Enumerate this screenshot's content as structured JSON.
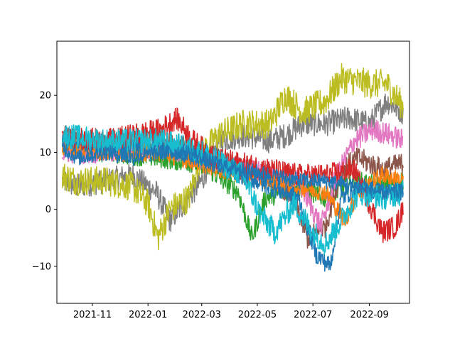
{
  "chart_data": {
    "type": "line",
    "title": "",
    "xlabel": "",
    "ylabel": "",
    "grid": false,
    "legend": "none",
    "xlim": [
      "2021-09-23",
      "2022-10-15"
    ],
    "ylim": [
      -16.5,
      29.5
    ],
    "x_ticks": [
      {
        "date": "2021-11-01",
        "label": "2021-11"
      },
      {
        "date": "2022-01-01",
        "label": "2022-01"
      },
      {
        "date": "2022-03-01",
        "label": "2022-03"
      },
      {
        "date": "2022-05-01",
        "label": "2022-05"
      },
      {
        "date": "2022-07-01",
        "label": "2022-07"
      },
      {
        "date": "2022-09-01",
        "label": "2022-09"
      }
    ],
    "y_ticks": [
      {
        "value": 20,
        "label": "20"
      },
      {
        "value": 10,
        "label": "10"
      },
      {
        "value": 0,
        "label": "0"
      },
      {
        "value": -10,
        "label": "−10"
      }
    ],
    "series": [
      {
        "color": "#7f7f7f",
        "noise": 2.2,
        "points": [
          [
            "2021-09-29",
            5
          ],
          [
            "2021-10-15",
            4
          ],
          [
            "2021-11-15",
            5
          ],
          [
            "2021-12-15",
            6
          ],
          [
            "2022-01-10",
            3
          ],
          [
            "2022-01-25",
            -2
          ],
          [
            "2022-02-10",
            1
          ],
          [
            "2022-03-01",
            5
          ],
          [
            "2022-03-20",
            12
          ],
          [
            "2022-04-15",
            13
          ],
          [
            "2022-05-15",
            12
          ],
          [
            "2022-06-01",
            13
          ],
          [
            "2022-06-20",
            15
          ],
          [
            "2022-07-15",
            15
          ],
          [
            "2022-08-10",
            16
          ],
          [
            "2022-09-01",
            15
          ],
          [
            "2022-09-20",
            19
          ],
          [
            "2022-10-08",
            17
          ]
        ]
      },
      {
        "color": "#bcbd22",
        "noise": 2.6,
        "points": [
          [
            "2021-09-29",
            6
          ],
          [
            "2021-10-15",
            5
          ],
          [
            "2021-11-15",
            5
          ],
          [
            "2021-12-15",
            4
          ],
          [
            "2022-01-01",
            1
          ],
          [
            "2022-01-12",
            -5
          ],
          [
            "2022-01-25",
            0
          ],
          [
            "2022-02-15",
            2
          ],
          [
            "2022-03-01",
            10
          ],
          [
            "2022-03-20",
            13
          ],
          [
            "2022-04-15",
            15
          ],
          [
            "2022-05-15",
            15
          ],
          [
            "2022-06-01",
            20
          ],
          [
            "2022-06-20",
            17
          ],
          [
            "2022-07-15",
            19
          ],
          [
            "2022-08-01",
            23
          ],
          [
            "2022-09-01",
            22
          ],
          [
            "2022-09-20",
            22
          ],
          [
            "2022-10-08",
            18
          ]
        ]
      },
      {
        "color": "#2ca02c",
        "noise": 1.8,
        "points": [
          [
            "2021-09-29",
            11
          ],
          [
            "2021-11-15",
            10
          ],
          [
            "2022-01-15",
            9
          ],
          [
            "2022-03-01",
            8
          ],
          [
            "2022-04-10",
            3
          ],
          [
            "2022-04-25",
            -5
          ],
          [
            "2022-05-10",
            2
          ],
          [
            "2022-06-15",
            4
          ],
          [
            "2022-07-15",
            2
          ],
          [
            "2022-08-15",
            5
          ],
          [
            "2022-09-15",
            4
          ],
          [
            "2022-10-08",
            5
          ]
        ]
      },
      {
        "color": "#8c564b",
        "noise": 2.0,
        "points": [
          [
            "2021-09-29",
            12
          ],
          [
            "2021-11-15",
            11
          ],
          [
            "2022-01-15",
            12
          ],
          [
            "2022-02-15",
            11
          ],
          [
            "2022-03-15",
            9
          ],
          [
            "2022-04-15",
            7
          ],
          [
            "2022-05-15",
            6
          ],
          [
            "2022-06-10",
            2
          ],
          [
            "2022-06-25",
            -5
          ],
          [
            "2022-07-15",
            -3
          ],
          [
            "2022-08-01",
            7
          ],
          [
            "2022-08-20",
            9
          ],
          [
            "2022-09-15",
            7
          ],
          [
            "2022-10-08",
            8
          ]
        ]
      },
      {
        "color": "#e377c2",
        "noise": 2.0,
        "points": [
          [
            "2021-09-29",
            10
          ],
          [
            "2021-11-15",
            10
          ],
          [
            "2022-01-15",
            11
          ],
          [
            "2022-03-01",
            9
          ],
          [
            "2022-04-15",
            7
          ],
          [
            "2022-05-15",
            6
          ],
          [
            "2022-06-15",
            5
          ],
          [
            "2022-07-10",
            -3
          ],
          [
            "2022-07-25",
            5
          ],
          [
            "2022-08-15",
            12
          ],
          [
            "2022-09-05",
            14
          ],
          [
            "2022-09-25",
            13
          ],
          [
            "2022-10-08",
            12
          ]
        ]
      },
      {
        "color": "#ff7f0e",
        "noise": 1.6,
        "points": [
          [
            "2021-09-29",
            11
          ],
          [
            "2021-11-15",
            10
          ],
          [
            "2022-01-15",
            10
          ],
          [
            "2022-03-01",
            8
          ],
          [
            "2022-04-15",
            6
          ],
          [
            "2022-05-15",
            5
          ],
          [
            "2022-06-15",
            4
          ],
          [
            "2022-07-15",
            3
          ],
          [
            "2022-08-05",
            -2
          ],
          [
            "2022-08-20",
            3
          ],
          [
            "2022-09-15",
            6
          ],
          [
            "2022-10-08",
            5
          ]
        ]
      },
      {
        "color": "#1f77b4",
        "noise": 1.7,
        "points": [
          [
            "2021-09-29",
            12
          ],
          [
            "2021-11-15",
            11
          ],
          [
            "2022-01-15",
            11
          ],
          [
            "2022-03-01",
            9
          ],
          [
            "2022-04-15",
            6
          ],
          [
            "2022-05-15",
            4
          ],
          [
            "2022-06-15",
            2
          ],
          [
            "2022-07-05",
            -8
          ],
          [
            "2022-07-20",
            -10
          ],
          [
            "2022-08-01",
            2
          ],
          [
            "2022-08-20",
            4
          ],
          [
            "2022-09-15",
            3
          ],
          [
            "2022-10-08",
            3
          ]
        ]
      },
      {
        "color": "#d62728",
        "noise": 2.0,
        "points": [
          [
            "2021-09-29",
            13
          ],
          [
            "2021-11-15",
            12
          ],
          [
            "2022-01-15",
            14
          ],
          [
            "2022-02-01",
            16
          ],
          [
            "2022-02-20",
            12
          ],
          [
            "2022-03-15",
            9
          ],
          [
            "2022-04-15",
            8
          ],
          [
            "2022-05-15",
            7
          ],
          [
            "2022-06-15",
            6
          ],
          [
            "2022-07-15",
            6
          ],
          [
            "2022-08-15",
            7
          ],
          [
            "2022-09-01",
            1
          ],
          [
            "2022-09-15",
            -4
          ],
          [
            "2022-09-30",
            -3
          ],
          [
            "2022-10-08",
            0
          ]
        ]
      },
      {
        "color": "#17becf",
        "noise": 2.2,
        "points": [
          [
            "2021-09-29",
            13
          ],
          [
            "2021-11-15",
            12
          ],
          [
            "2022-01-15",
            12
          ],
          [
            "2022-03-01",
            10
          ],
          [
            "2022-04-15",
            6
          ],
          [
            "2022-05-05",
            -1
          ],
          [
            "2022-05-20",
            -4
          ],
          [
            "2022-06-10",
            1
          ],
          [
            "2022-07-01",
            -4
          ],
          [
            "2022-07-15",
            -6
          ],
          [
            "2022-08-01",
            -2
          ],
          [
            "2022-08-20",
            3
          ],
          [
            "2022-09-15",
            2
          ],
          [
            "2022-10-08",
            3
          ]
        ]
      },
      {
        "color": "#1f77b4",
        "noise": 1.4,
        "points": [
          [
            "2021-09-29",
            11
          ],
          [
            "2021-10-15",
            9
          ],
          [
            "2021-11-15",
            10
          ],
          [
            "2021-12-15",
            9
          ],
          [
            "2022-01-15",
            10
          ],
          [
            "2022-02-15",
            10
          ],
          [
            "2022-03-15",
            8
          ],
          [
            "2022-04-15",
            7
          ],
          [
            "2022-05-15",
            6
          ],
          [
            "2022-06-15",
            5
          ],
          [
            "2022-07-15",
            5
          ],
          [
            "2022-08-15",
            4
          ],
          [
            "2022-09-15",
            3
          ],
          [
            "2022-10-08",
            3
          ]
        ]
      }
    ]
  }
}
